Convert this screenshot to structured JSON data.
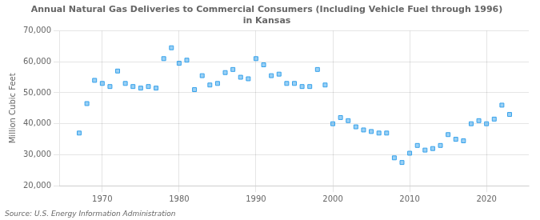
{
  "chart_data": {
    "type": "scatter",
    "title": "Annual Natural Gas Deliveries to Commercial Consumers (Including Vehicle Fuel through 1996)\nin Kansas",
    "ylabel": "Million Cubic Feet",
    "annotation": "Source: U.S. Energy Information Administration",
    "marker": "square",
    "grid": true,
    "xlim": [
      1964.5,
      2025.5
    ],
    "xticks": [
      1970,
      1980,
      1990,
      2000,
      2010,
      2020
    ],
    "ylim": [
      20000,
      70000
    ],
    "yticks": [
      {
        "value": 20000,
        "label": "20,000"
      },
      {
        "value": 30000,
        "label": "30,000"
      },
      {
        "value": 40000,
        "label": "40,000"
      },
      {
        "value": 50000,
        "label": "50,000"
      },
      {
        "value": 60000,
        "label": "60,000"
      },
      {
        "value": 70000,
        "label": "70,000"
      }
    ],
    "x": [
      1967,
      1968,
      1969,
      1970,
      1971,
      1972,
      1973,
      1974,
      1975,
      1976,
      1977,
      1978,
      1979,
      1980,
      1981,
      1982,
      1983,
      1984,
      1985,
      1986,
      1987,
      1988,
      1989,
      1990,
      1991,
      1992,
      1993,
      1994,
      1995,
      1996,
      1997,
      1998,
      1999,
      2000,
      2001,
      2002,
      2003,
      2004,
      2005,
      2006,
      2007,
      2008,
      2009,
      2010,
      2011,
      2012,
      2013,
      2014,
      2015,
      2016,
      2017,
      2018,
      2019,
      2020,
      2021,
      2022,
      2023
    ],
    "values": [
      37000,
      46500,
      54000,
      53000,
      52000,
      57000,
      53000,
      52000,
      51500,
      52000,
      51500,
      61000,
      64500,
      59500,
      60500,
      51000,
      55500,
      52500,
      53000,
      56500,
      57500,
      55000,
      54500,
      61000,
      59000,
      55500,
      56000,
      53000,
      53000,
      52000,
      52000,
      57500,
      52500,
      40000,
      42000,
      41000,
      39000,
      38000,
      37500,
      37000,
      37000,
      29000,
      27500,
      30500,
      33000,
      31500,
      32000,
      33000,
      36500,
      35000,
      34500,
      40000,
      41000,
      40000,
      41500,
      46000,
      43000
    ]
  }
}
